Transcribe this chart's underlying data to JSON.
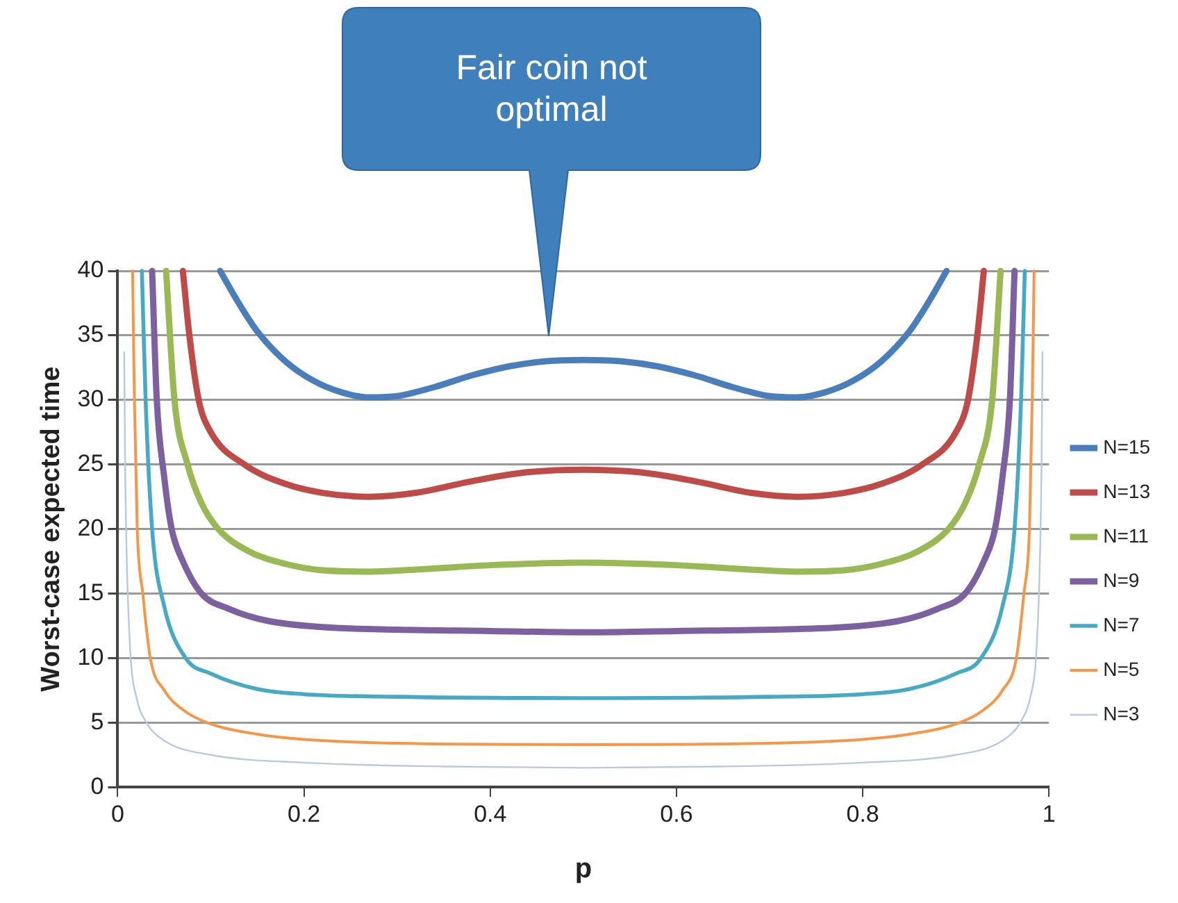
{
  "chart_data": {
    "type": "line",
    "xlabel": "p",
    "ylabel": "Worst-case expected time",
    "xlim": [
      0,
      1
    ],
    "xticks": [
      0,
      0.2,
      0.4,
      0.6,
      0.8,
      1
    ],
    "ylim": [
      0,
      40
    ],
    "yticks": [
      0,
      5,
      10,
      15,
      20,
      25,
      30,
      35,
      40
    ],
    "grid": "y",
    "legend": "right",
    "marker": "none",
    "line_style": "solid",
    "annotations": [
      "Fair coin not optimal"
    ],
    "series": [
      {
        "name": "N=15",
        "color": "#4a7ebb",
        "x": [
          0.11,
          0.13,
          0.15,
          0.18,
          0.21,
          0.24,
          0.27,
          0.3,
          0.34,
          0.38,
          0.42,
          0.46,
          0.5,
          0.54,
          0.58,
          0.62,
          0.66,
          0.7,
          0.73,
          0.76,
          0.79,
          0.82,
          0.85,
          0.87,
          0.89
        ],
        "values": [
          40,
          37.5,
          35.3,
          33,
          31.5,
          30.6,
          30.2,
          30.3,
          31,
          31.9,
          32.6,
          33,
          33.1,
          33,
          32.6,
          31.9,
          31,
          30.3,
          30.2,
          30.6,
          31.5,
          33,
          35.3,
          37.5,
          40
        ]
      },
      {
        "name": "N=13",
        "color": "#be4b48",
        "x": [
          0.07,
          0.077,
          0.087,
          0.1,
          0.136,
          0.18,
          0.22,
          0.27,
          0.32,
          0.38,
          0.44,
          0.5,
          0.56,
          0.62,
          0.68,
          0.73,
          0.78,
          0.82,
          0.864,
          0.9,
          0.913,
          0.923,
          0.93
        ],
        "values": [
          40,
          35,
          30,
          27.5,
          25,
          23.5,
          22.8,
          22.5,
          22.8,
          23.7,
          24.4,
          24.6,
          24.4,
          23.7,
          22.8,
          22.5,
          22.8,
          23.5,
          25,
          27.5,
          30,
          35,
          40
        ]
      },
      {
        "name": "N=11",
        "color": "#98b954",
        "x": [
          0.052,
          0.061,
          0.075,
          0.09,
          0.108,
          0.14,
          0.18,
          0.22,
          0.27,
          0.33,
          0.4,
          0.5,
          0.6,
          0.67,
          0.73,
          0.78,
          0.82,
          0.86,
          0.892,
          0.91,
          0.925,
          0.939,
          0.948
        ],
        "values": [
          40,
          30,
          25,
          22,
          20,
          18.3,
          17.3,
          16.8,
          16.7,
          16.9,
          17.2,
          17.4,
          17.2,
          16.9,
          16.7,
          16.8,
          17.3,
          18.3,
          20,
          22,
          25,
          30,
          40
        ]
      },
      {
        "name": "N=9",
        "color": "#7d60a0",
        "x": [
          0.037,
          0.042,
          0.05,
          0.058,
          0.07,
          0.09,
          0.12,
          0.16,
          0.22,
          0.3,
          0.4,
          0.5,
          0.6,
          0.7,
          0.78,
          0.84,
          0.88,
          0.91,
          0.93,
          0.942,
          0.95,
          0.958,
          0.963
        ],
        "values": [
          40,
          30,
          24,
          20,
          17.5,
          15,
          13.8,
          12.9,
          12.4,
          12.2,
          12.1,
          12,
          12.1,
          12.2,
          12.4,
          12.9,
          13.8,
          15,
          17.5,
          20,
          24,
          30,
          40
        ]
      },
      {
        "name": "N=7",
        "color": "#46aac5",
        "x": [
          0.026,
          0.03,
          0.037,
          0.05,
          0.073,
          0.1,
          0.15,
          0.2,
          0.3,
          0.5,
          0.7,
          0.8,
          0.85,
          0.9,
          0.927,
          0.95,
          0.963,
          0.97,
          0.974
        ],
        "values": [
          40,
          30,
          20,
          14,
          10,
          8.8,
          7.6,
          7.2,
          7,
          6.9,
          7,
          7.2,
          7.6,
          8.8,
          10,
          14,
          20,
          30,
          40
        ]
      },
      {
        "name": "N=5",
        "color": "#f79646",
        "x": [
          0.016,
          0.018,
          0.021,
          0.027,
          0.035,
          0.05,
          0.07,
          0.096,
          0.15,
          0.2,
          0.3,
          0.5,
          0.7,
          0.8,
          0.85,
          0.904,
          0.93,
          0.95,
          0.965,
          0.973,
          0.979,
          0.982,
          0.984
        ],
        "values": [
          40,
          30,
          20,
          15,
          10,
          7.5,
          6,
          5,
          4.1,
          3.7,
          3.4,
          3.3,
          3.4,
          3.7,
          4.1,
          5,
          6,
          7.5,
          10,
          15,
          20,
          30,
          40
        ]
      },
      {
        "name": "N=3",
        "color": "#b9c7e0",
        "x": [
          0.007,
          0.008,
          0.01,
          0.014,
          0.02,
          0.031,
          0.05,
          0.1,
          0.2,
          0.35,
          0.5,
          0.65,
          0.8,
          0.9,
          0.95,
          0.969,
          0.98,
          0.986,
          0.99,
          0.992,
          0.993
        ],
        "values": [
          33.7,
          25,
          17,
          10,
          7,
          5,
          3.6,
          2.5,
          1.9,
          1.6,
          1.5,
          1.6,
          1.9,
          2.5,
          3.6,
          5,
          7,
          10,
          17,
          25,
          33.7
        ]
      }
    ]
  }
}
